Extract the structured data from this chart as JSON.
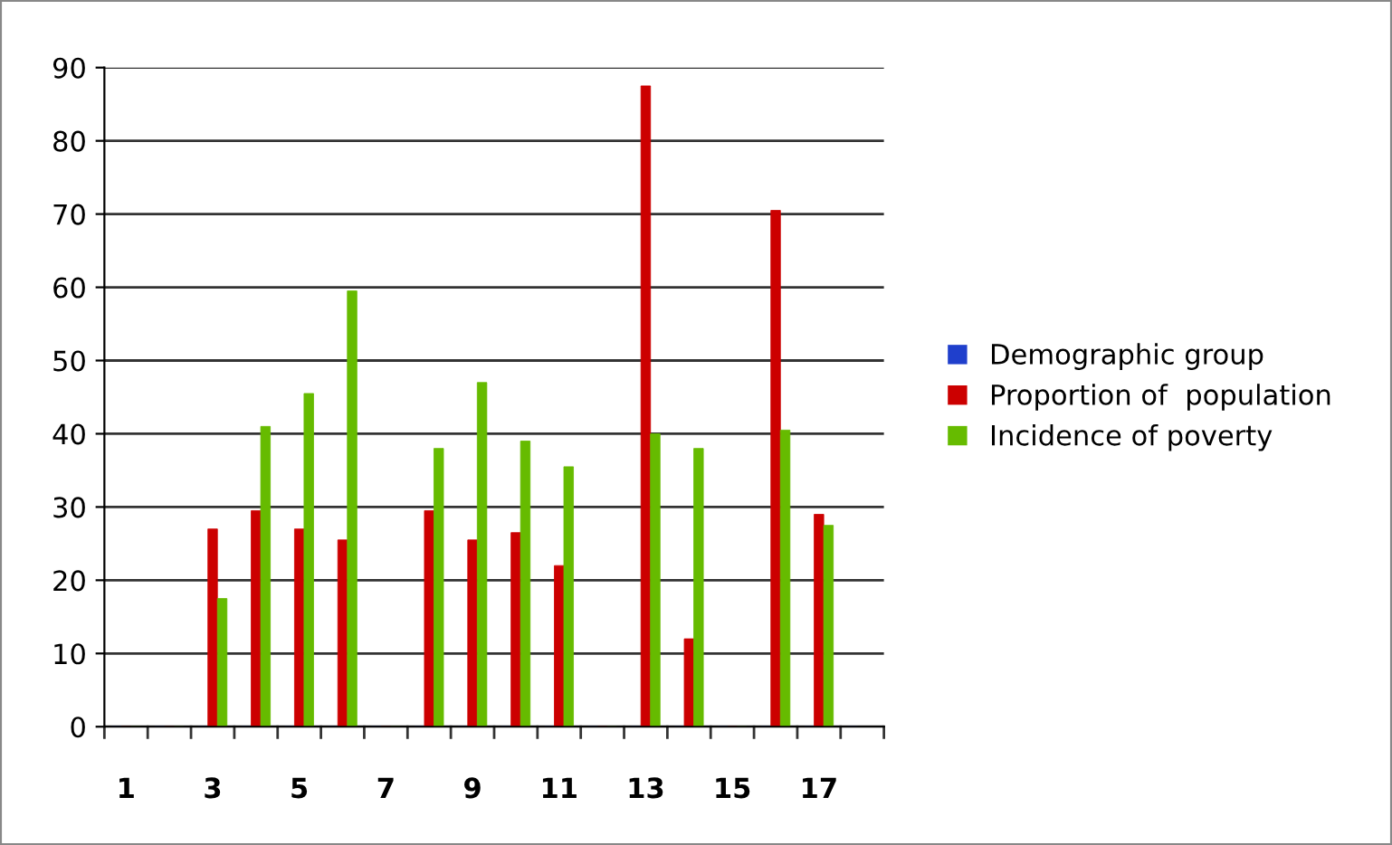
{
  "chart_data": {
    "type": "bar",
    "categories": [
      "1",
      null,
      "3",
      null,
      "5",
      null,
      "7",
      null,
      "9",
      null,
      "11",
      null,
      "13",
      null,
      "15",
      null,
      "17",
      null
    ],
    "series": [
      {
        "name": "Demographic group",
        "color": "#1f3fcc",
        "values": [
          0,
          0,
          0,
          0,
          0,
          0,
          0,
          0,
          0,
          0,
          0,
          0,
          0,
          0,
          0,
          0,
          0,
          0
        ]
      },
      {
        "name": "Proportion of  population",
        "color": "#cc0000",
        "values": [
          0,
          0,
          27,
          29.5,
          27,
          25.5,
          0,
          29.5,
          25.5,
          26.5,
          22,
          0,
          87.5,
          12,
          0,
          70.5,
          29,
          null
        ]
      },
      {
        "name": "Incidence of poverty",
        "color": "#66bb00",
        "values": [
          0,
          0,
          17.5,
          41,
          45.5,
          59.5,
          0,
          38,
          47,
          39,
          35.5,
          0,
          40,
          38,
          0,
          40.5,
          27.5,
          null
        ]
      }
    ],
    "ylim": [
      0,
      90
    ],
    "yticks": [
      0,
      10,
      20,
      30,
      40,
      50,
      60,
      70,
      80,
      90
    ],
    "grid": "y",
    "legend": "right"
  }
}
